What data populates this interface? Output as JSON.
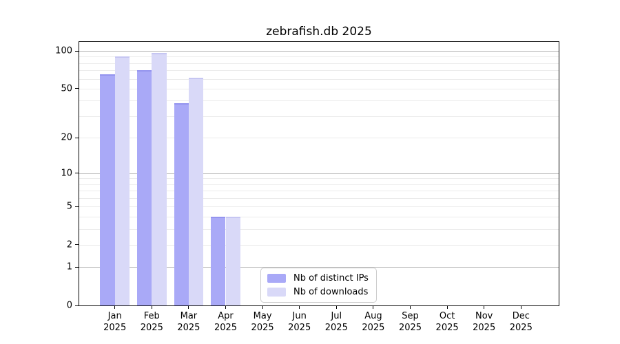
{
  "chart_data": {
    "type": "bar",
    "title": "zebrafish.db 2025",
    "categories": [
      "Jan",
      "Feb",
      "Mar",
      "Apr",
      "May",
      "Jun",
      "Jul",
      "Aug",
      "Sep",
      "Oct",
      "Nov",
      "Dec"
    ],
    "year_label": "2025",
    "series": [
      {
        "name": "Nb of distinct IPs",
        "color": "#a9a9f7",
        "edge_color": "#9494ef",
        "values": [
          65,
          70,
          38,
          4,
          0,
          0,
          0,
          0,
          0,
          0,
          0,
          0
        ]
      },
      {
        "name": "Nb of downloads",
        "color": "#d9d9f8",
        "edge_color": "#c6c6f2",
        "values": [
          90,
          96,
          61,
          4,
          0,
          0,
          0,
          0,
          0,
          0,
          0,
          0
        ]
      }
    ],
    "xlabel": "",
    "ylabel": "",
    "yscale": "log1p",
    "ylim": [
      0,
      118
    ],
    "yticks": [
      0,
      1,
      2,
      5,
      10,
      20,
      50,
      100
    ],
    "grid": "horizontal",
    "legend_position": "bottom-center-inside"
  }
}
